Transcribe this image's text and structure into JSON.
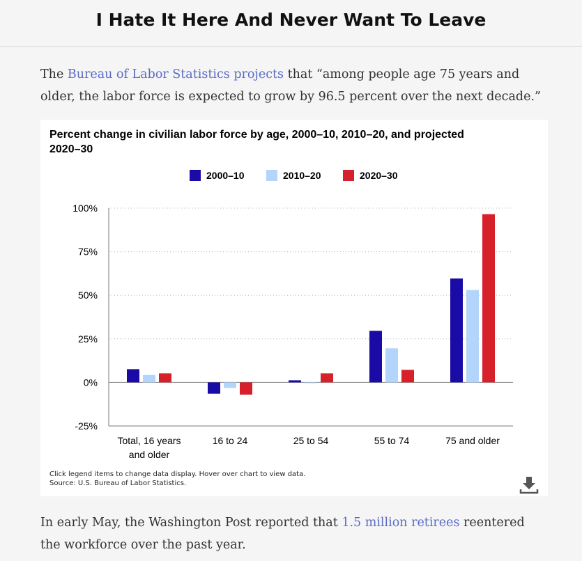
{
  "site": {
    "title": "I Hate It Here And Never Want To Leave"
  },
  "para1": {
    "before": "The ",
    "link": "Bureau of Labor Statistics projects",
    "after": " that “among people age 75 years and older, the labor force is expected to grow by 96.5 percent over the next decade.”"
  },
  "para2": {
    "before": "In early May, the Washington Post reported that ",
    "link": "1.5 million retirees",
    "after": " reentered the workforce over the past year."
  },
  "chart_note": {
    "line1": "Click legend items to change data display. Hover over chart to view data.",
    "line2": "Source: U.S. Bureau of Labor Statistics."
  },
  "icons": {
    "download": "download-icon"
  },
  "chart_data": {
    "type": "bar",
    "title": "Percent change in civilian labor force by age, 2000–10, 2010–20, and projected 2020–30",
    "categories": [
      "Total, 16 years and older",
      "16 to 24",
      "25 to 54",
      "55 to 74",
      "75 and older"
    ],
    "category_lines": [
      [
        "Total, 16 years",
        "and older"
      ],
      [
        "16 to 24"
      ],
      [
        "25 to 54"
      ],
      [
        "55 to 74"
      ],
      [
        "75 and older"
      ]
    ],
    "series": [
      {
        "name": "2000–10",
        "color": "#1a0aa6",
        "values": [
          7.6,
          -6.5,
          1.2,
          29.6,
          59.6
        ]
      },
      {
        "name": "2010–20",
        "color": "#b3d5fb",
        "values": [
          4.3,
          -3.2,
          -0.5,
          19.6,
          53.0
        ]
      },
      {
        "name": "2020–30",
        "color": "#d6202a",
        "values": [
          5.2,
          -7.0,
          5.2,
          7.2,
          96.5
        ]
      }
    ],
    "ylim": [
      -25,
      100
    ],
    "yticks": [
      -25,
      0,
      25,
      50,
      75,
      100
    ],
    "ytick_labels": [
      "-25%",
      "0%",
      "25%",
      "50%",
      "75%",
      "100%"
    ],
    "grid": true,
    "legend": "top"
  }
}
